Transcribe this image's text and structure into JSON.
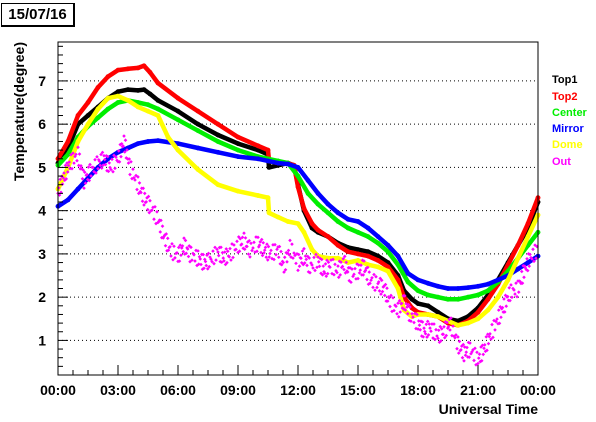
{
  "header": {
    "date": "15/07/16"
  },
  "chart_data": {
    "type": "scatter",
    "title": "",
    "xlabel": "Universal Time",
    "ylabel": "Temperature(degree)",
    "xlim": [
      0,
      24
    ],
    "ylim": [
      0.2,
      7.9
    ],
    "x_ticks": [
      {
        "value": 0,
        "label": "00:00"
      },
      {
        "value": 3,
        "label": "03:00"
      },
      {
        "value": 6,
        "label": "06:00"
      },
      {
        "value": 9,
        "label": "09:00"
      },
      {
        "value": 12,
        "label": "12:00"
      },
      {
        "value": 15,
        "label": "15:00"
      },
      {
        "value": 18,
        "label": "18:00"
      },
      {
        "value": 21,
        "label": "21:00"
      },
      {
        "value": 24,
        "label": "00:00"
      }
    ],
    "y_ticks": [
      {
        "value": 1,
        "label": "1"
      },
      {
        "value": 2,
        "label": "2"
      },
      {
        "value": 3,
        "label": "3"
      },
      {
        "value": 4,
        "label": "4"
      },
      {
        "value": 5,
        "label": "5"
      },
      {
        "value": 6,
        "label": "6"
      },
      {
        "value": 7,
        "label": "7"
      }
    ],
    "grid": "dotted horizontal at major y ticks",
    "legend_position": "right",
    "series": [
      {
        "name": "Top1",
        "color": "#000000",
        "points": [
          [
            0,
            5.1
          ],
          [
            0.5,
            5.45
          ],
          [
            1,
            6
          ],
          [
            1.5,
            6.2
          ],
          [
            2,
            6.4
          ],
          [
            2.5,
            6.6
          ],
          [
            3,
            6.75
          ],
          [
            3.5,
            6.8
          ],
          [
            4,
            6.78
          ],
          [
            4.3,
            6.8
          ],
          [
            4.6,
            6.7
          ],
          [
            5,
            6.55
          ],
          [
            6,
            6.3
          ],
          [
            7,
            6
          ],
          [
            8,
            5.75
          ],
          [
            9,
            5.55
          ],
          [
            10,
            5.4
          ],
          [
            10.5,
            5.3
          ],
          [
            10.55,
            5.0
          ],
          [
            11,
            5.05
          ],
          [
            11.5,
            5.1
          ],
          [
            11.8,
            5.05
          ],
          [
            12,
            4.6
          ],
          [
            12.3,
            4.0
          ],
          [
            12.7,
            3.6
          ],
          [
            13,
            3.5
          ],
          [
            13.5,
            3.4
          ],
          [
            14,
            3.25
          ],
          [
            14.5,
            3.15
          ],
          [
            15,
            3.1
          ],
          [
            15.5,
            3.05
          ],
          [
            16,
            2.95
          ],
          [
            16.5,
            2.8
          ],
          [
            17,
            2.5
          ],
          [
            17.3,
            2.15
          ],
          [
            17.7,
            1.95
          ],
          [
            18,
            1.85
          ],
          [
            18.5,
            1.8
          ],
          [
            19,
            1.65
          ],
          [
            19.5,
            1.5
          ],
          [
            20,
            1.45
          ],
          [
            20.5,
            1.55
          ],
          [
            21,
            1.75
          ],
          [
            21.5,
            2.05
          ],
          [
            22,
            2.4
          ],
          [
            22.5,
            2.8
          ],
          [
            23,
            3.2
          ],
          [
            23.5,
            3.6
          ],
          [
            24,
            4.2
          ]
        ]
      },
      {
        "name": "Top2",
        "color": "#ff0000",
        "points": [
          [
            0,
            5.2
          ],
          [
            0.5,
            5.6
          ],
          [
            1,
            6.2
          ],
          [
            1.5,
            6.5
          ],
          [
            2,
            6.85
          ],
          [
            2.5,
            7.1
          ],
          [
            3,
            7.25
          ],
          [
            3.5,
            7.28
          ],
          [
            4,
            7.3
          ],
          [
            4.3,
            7.35
          ],
          [
            4.6,
            7.2
          ],
          [
            5,
            6.95
          ],
          [
            6,
            6.6
          ],
          [
            7,
            6.3
          ],
          [
            8,
            6.0
          ],
          [
            9,
            5.7
          ],
          [
            10,
            5.5
          ],
          [
            10.5,
            5.4
          ],
          [
            10.55,
            5.15
          ],
          [
            11,
            5.1
          ],
          [
            11.5,
            5.1
          ],
          [
            11.8,
            5.05
          ],
          [
            12,
            4.55
          ],
          [
            12.3,
            4.05
          ],
          [
            12.7,
            3.7
          ],
          [
            13,
            3.55
          ],
          [
            13.5,
            3.4
          ],
          [
            14,
            3.2
          ],
          [
            14.5,
            3.05
          ],
          [
            15,
            3.0
          ],
          [
            15.5,
            2.95
          ],
          [
            16,
            2.85
          ],
          [
            16.5,
            2.7
          ],
          [
            17,
            2.4
          ],
          [
            17.3,
            2.0
          ],
          [
            17.7,
            1.75
          ],
          [
            18,
            1.65
          ],
          [
            18.5,
            1.6
          ],
          [
            19,
            1.55
          ],
          [
            19.5,
            1.4
          ],
          [
            20,
            1.35
          ],
          [
            20.5,
            1.45
          ],
          [
            21,
            1.65
          ],
          [
            21.5,
            1.95
          ],
          [
            22,
            2.3
          ],
          [
            22.5,
            2.75
          ],
          [
            23,
            3.2
          ],
          [
            23.5,
            3.7
          ],
          [
            24,
            4.3
          ]
        ]
      },
      {
        "name": "Center",
        "color": "#00ee00",
        "points": [
          [
            0,
            5.05
          ],
          [
            0.5,
            5.3
          ],
          [
            1,
            5.7
          ],
          [
            1.5,
            5.95
          ],
          [
            2,
            6.15
          ],
          [
            2.5,
            6.35
          ],
          [
            3,
            6.5
          ],
          [
            3.5,
            6.55
          ],
          [
            4,
            6.5
          ],
          [
            4.5,
            6.45
          ],
          [
            5,
            6.35
          ],
          [
            6,
            6.1
          ],
          [
            7,
            5.85
          ],
          [
            8,
            5.6
          ],
          [
            9,
            5.4
          ],
          [
            10,
            5.25
          ],
          [
            10.5,
            5.2
          ],
          [
            11,
            5.15
          ],
          [
            11.5,
            5.1
          ],
          [
            12,
            4.8
          ],
          [
            12.5,
            4.4
          ],
          [
            13,
            4.15
          ],
          [
            13.5,
            3.95
          ],
          [
            14,
            3.75
          ],
          [
            14.5,
            3.6
          ],
          [
            15,
            3.5
          ],
          [
            15.5,
            3.4
          ],
          [
            16,
            3.25
          ],
          [
            16.5,
            3.05
          ],
          [
            17,
            2.75
          ],
          [
            17.5,
            2.35
          ],
          [
            18,
            2.15
          ],
          [
            18.5,
            2.05
          ],
          [
            19,
            2.0
          ],
          [
            19.5,
            1.95
          ],
          [
            20,
            1.95
          ],
          [
            20.5,
            2.0
          ],
          [
            21,
            2.05
          ],
          [
            21.5,
            2.15
          ],
          [
            22,
            2.35
          ],
          [
            22.5,
            2.6
          ],
          [
            23,
            2.9
          ],
          [
            23.5,
            3.2
          ],
          [
            24,
            3.5
          ]
        ]
      },
      {
        "name": "Mirror",
        "color": "#0000ff",
        "points": [
          [
            0,
            4.1
          ],
          [
            0.5,
            4.25
          ],
          [
            1,
            4.5
          ],
          [
            1.5,
            4.75
          ],
          [
            2,
            5.0
          ],
          [
            2.5,
            5.2
          ],
          [
            3,
            5.35
          ],
          [
            3.5,
            5.45
          ],
          [
            4,
            5.55
          ],
          [
            4.5,
            5.6
          ],
          [
            5,
            5.62
          ],
          [
            6,
            5.55
          ],
          [
            7,
            5.45
          ],
          [
            8,
            5.35
          ],
          [
            9,
            5.25
          ],
          [
            10,
            5.2
          ],
          [
            10.5,
            5.15
          ],
          [
            11,
            5.1
          ],
          [
            11.5,
            5.08
          ],
          [
            12,
            5.0
          ],
          [
            12.5,
            4.7
          ],
          [
            13,
            4.4
          ],
          [
            13.5,
            4.15
          ],
          [
            14,
            3.95
          ],
          [
            14.5,
            3.8
          ],
          [
            15,
            3.75
          ],
          [
            15.5,
            3.6
          ],
          [
            16,
            3.4
          ],
          [
            16.5,
            3.2
          ],
          [
            17,
            2.95
          ],
          [
            17.5,
            2.55
          ],
          [
            18,
            2.4
          ],
          [
            18.5,
            2.32
          ],
          [
            19,
            2.25
          ],
          [
            19.5,
            2.2
          ],
          [
            20,
            2.2
          ],
          [
            20.5,
            2.22
          ],
          [
            21,
            2.25
          ],
          [
            21.5,
            2.3
          ],
          [
            22,
            2.4
          ],
          [
            22.5,
            2.5
          ],
          [
            23,
            2.65
          ],
          [
            23.5,
            2.8
          ],
          [
            24,
            2.95
          ]
        ]
      },
      {
        "name": "Dome",
        "color": "#ffff00",
        "points": [
          [
            0,
            4.5
          ],
          [
            0.5,
            5.0
          ],
          [
            1,
            5.6
          ],
          [
            1.5,
            6.0
          ],
          [
            2,
            6.35
          ],
          [
            2.5,
            6.6
          ],
          [
            3,
            6.65
          ],
          [
            3.5,
            6.55
          ],
          [
            4,
            6.4
          ],
          [
            4.5,
            6.3
          ],
          [
            5,
            6.2
          ],
          [
            5.5,
            5.7
          ],
          [
            6,
            5.4
          ],
          [
            7,
            4.95
          ],
          [
            8,
            4.6
          ],
          [
            9,
            4.45
          ],
          [
            10,
            4.35
          ],
          [
            10.5,
            4.3
          ],
          [
            10.55,
            3.95
          ],
          [
            11,
            3.85
          ],
          [
            11.5,
            3.75
          ],
          [
            12,
            3.7
          ],
          [
            12.3,
            3.5
          ],
          [
            12.7,
            3.1
          ],
          [
            13,
            2.95
          ],
          [
            13.5,
            2.9
          ],
          [
            14,
            2.9
          ],
          [
            14.5,
            2.8
          ],
          [
            15,
            2.85
          ],
          [
            15.5,
            2.75
          ],
          [
            16,
            2.7
          ],
          [
            16.5,
            2.6
          ],
          [
            17,
            2.2
          ],
          [
            17.3,
            1.7
          ],
          [
            17.7,
            1.55
          ],
          [
            18,
            1.6
          ],
          [
            18.5,
            1.6
          ],
          [
            19,
            1.55
          ],
          [
            19.5,
            1.45
          ],
          [
            20,
            1.35
          ],
          [
            20.5,
            1.4
          ],
          [
            21,
            1.5
          ],
          [
            21.5,
            1.7
          ],
          [
            22,
            2.0
          ],
          [
            22.5,
            2.4
          ],
          [
            23,
            2.9
          ],
          [
            23.5,
            3.4
          ],
          [
            24,
            3.9
          ]
        ]
      },
      {
        "name": "Out",
        "color": "#ff00ff",
        "points": [
          [
            0,
            4.4
          ],
          [
            0.3,
            4.8
          ],
          [
            0.6,
            5.1
          ],
          [
            1,
            5.3
          ],
          [
            1.3,
            4.7
          ],
          [
            1.6,
            4.9
          ],
          [
            2,
            5.1
          ],
          [
            2.3,
            5.2
          ],
          [
            2.6,
            5.0
          ],
          [
            3,
            5.2
          ],
          [
            3.3,
            5.6
          ],
          [
            3.6,
            5.0
          ],
          [
            4,
            4.6
          ],
          [
            4.3,
            4.3
          ],
          [
            4.6,
            4.1
          ],
          [
            5,
            3.8
          ],
          [
            5.3,
            3.4
          ],
          [
            5.6,
            3.1
          ],
          [
            6,
            2.95
          ],
          [
            6.3,
            3.2
          ],
          [
            6.6,
            3.0
          ],
          [
            7,
            2.9
          ],
          [
            7.3,
            2.8
          ],
          [
            7.6,
            2.85
          ],
          [
            8,
            3.05
          ],
          [
            8.3,
            2.9
          ],
          [
            8.6,
            3.0
          ],
          [
            9,
            3.2
          ],
          [
            9.3,
            3.3
          ],
          [
            9.6,
            3.1
          ],
          [
            10,
            3.25
          ],
          [
            10.3,
            3.1
          ],
          [
            10.6,
            3.0
          ],
          [
            11,
            3.1
          ],
          [
            11.3,
            2.7
          ],
          [
            11.6,
            3.15
          ],
          [
            12,
            2.8
          ],
          [
            12.3,
            2.95
          ],
          [
            12.6,
            2.7
          ],
          [
            13,
            2.85
          ],
          [
            13.3,
            2.6
          ],
          [
            13.6,
            2.75
          ],
          [
            14,
            2.6
          ],
          [
            14.3,
            2.8
          ],
          [
            14.6,
            2.5
          ],
          [
            15,
            2.6
          ],
          [
            15.3,
            2.7
          ],
          [
            15.6,
            2.4
          ],
          [
            16,
            2.3
          ],
          [
            16.3,
            2.2
          ],
          [
            16.6,
            1.9
          ],
          [
            17,
            1.7
          ],
          [
            17.3,
            1.9
          ],
          [
            17.6,
            1.6
          ],
          [
            18,
            1.4
          ],
          [
            18.3,
            1.2
          ],
          [
            18.6,
            1.3
          ],
          [
            19,
            1.1
          ],
          [
            19.3,
            1.2
          ],
          [
            19.6,
            1.4
          ],
          [
            20,
            0.9
          ],
          [
            20.3,
            0.7
          ],
          [
            20.6,
            0.8
          ],
          [
            21,
            0.55
          ],
          [
            21.3,
            0.8
          ],
          [
            21.6,
            1.1
          ],
          [
            22,
            1.5
          ],
          [
            22.3,
            1.8
          ],
          [
            22.6,
            2.1
          ],
          [
            23,
            2.2
          ],
          [
            23.3,
            2.6
          ],
          [
            23.6,
            2.9
          ],
          [
            24,
            3.1
          ]
        ]
      }
    ]
  }
}
